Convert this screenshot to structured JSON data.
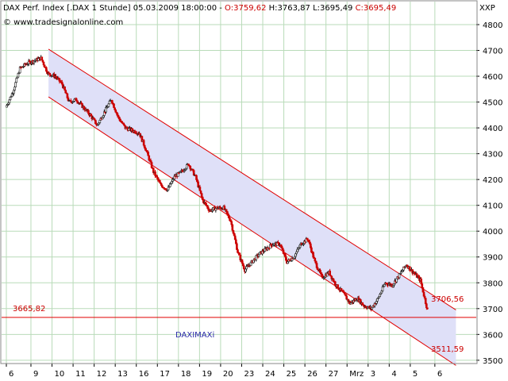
{
  "header": {
    "instrument": "DAX Perf. Index [.DAX  1 Stunde] 05.03.2009 18:00:00 - ",
    "open": "O:3759,62",
    "high": "H:3763,87",
    "low": "L:3695,49",
    "close": "C:3695,49",
    "source": "© www.tradesignalonline.com"
  },
  "axis_unit": "XXP",
  "indicator_label": "DAXIMAXi",
  "colors": {
    "up": "#1a1a1a",
    "down": "#cc0000",
    "channel_line": "#e00000",
    "channel_fill": "#dfe0f8",
    "grid": "#b9dbb9",
    "label_red": "#cc0000",
    "label_blue": "#2a2aa8"
  },
  "chart_data": {
    "type": "line",
    "title": "DAX Perf. Index [.DAX  1 Stunde]",
    "ylim": [
      3450,
      4850
    ],
    "yticks": [
      3500,
      3600,
      3700,
      3800,
      3900,
      4000,
      4100,
      4200,
      4300,
      4400,
      4500,
      4600,
      4700,
      4800
    ],
    "ytick_labels": [
      "3500",
      "3600",
      "3700",
      "3800",
      "3900",
      "4000",
      "4100",
      "4200",
      "4300",
      "4400",
      "4500",
      "4600",
      "4700",
      "4800"
    ],
    "xticks": [
      "6",
      "9",
      "10",
      "11",
      "12",
      "13",
      "16",
      "17",
      "18",
      "19",
      "20",
      "23",
      "24",
      "25",
      "26",
      "27",
      "Mrz",
      "3",
      "4",
      "5",
      "6"
    ],
    "xtick_session": [
      0,
      3.5,
      6.5,
      9.5,
      12.5,
      15.5,
      18.5,
      21.5,
      24.5,
      27.5,
      30.5,
      33.5,
      36.5,
      39.5,
      42.5,
      45.5,
      48.5,
      51.5,
      54.5,
      57.5,
      61
    ],
    "x_range_sessions": [
      0,
      64
    ],
    "price_path": [
      [
        0,
        4480
      ],
      [
        1,
        4540
      ],
      [
        2,
        4630
      ],
      [
        3,
        4650
      ],
      [
        4,
        4660
      ],
      [
        5,
        4670
      ],
      [
        6,
        4610
      ],
      [
        7,
        4600
      ],
      [
        8,
        4570
      ],
      [
        9,
        4500
      ],
      [
        10,
        4510
      ],
      [
        11,
        4480
      ],
      [
        12,
        4450
      ],
      [
        13,
        4410
      ],
      [
        14,
        4460
      ],
      [
        15,
        4510
      ],
      [
        16,
        4440
      ],
      [
        17,
        4400
      ],
      [
        18,
        4390
      ],
      [
        19,
        4380
      ],
      [
        20,
        4310
      ],
      [
        21,
        4230
      ],
      [
        22,
        4180
      ],
      [
        23,
        4160
      ],
      [
        24,
        4210
      ],
      [
        25,
        4230
      ],
      [
        26,
        4260
      ],
      [
        27,
        4210
      ],
      [
        28,
        4120
      ],
      [
        29,
        4080
      ],
      [
        30,
        4090
      ],
      [
        31,
        4090
      ],
      [
        32,
        4040
      ],
      [
        33,
        3920
      ],
      [
        34,
        3850
      ],
      [
        35,
        3880
      ],
      [
        36,
        3910
      ],
      [
        37,
        3930
      ],
      [
        38,
        3950
      ],
      [
        39,
        3950
      ],
      [
        40,
        3880
      ],
      [
        41,
        3900
      ],
      [
        42,
        3950
      ],
      [
        43,
        3970
      ],
      [
        44,
        3880
      ],
      [
        45,
        3820
      ],
      [
        46,
        3840
      ],
      [
        47,
        3790
      ],
      [
        48,
        3760
      ],
      [
        49,
        3720
      ],
      [
        50,
        3740
      ],
      [
        51,
        3710
      ],
      [
        52,
        3700
      ],
      [
        53,
        3740
      ],
      [
        54,
        3800
      ],
      [
        55,
        3790
      ],
      [
        56,
        3830
      ],
      [
        57,
        3870
      ],
      [
        58,
        3840
      ],
      [
        59,
        3810
      ],
      [
        60,
        3695
      ]
    ],
    "channel": {
      "upper": [
        [
          6,
          4705
        ],
        [
          64,
          3695
        ]
      ],
      "lower": [
        [
          6,
          4520
        ],
        [
          64,
          3480
        ]
      ]
    },
    "horizontal_level": 3665.82,
    "labels": {
      "level": "3665,82",
      "upper_end": "3706,56",
      "lower_end": "3511,59"
    }
  }
}
